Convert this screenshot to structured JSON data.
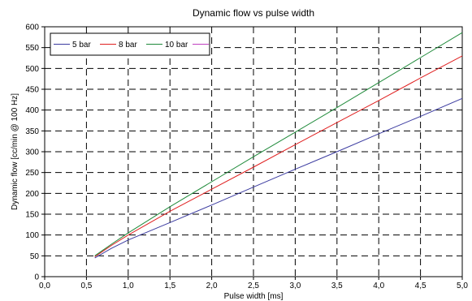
{
  "chart_data": {
    "type": "line",
    "title": "Dynamic flow vs pulse width",
    "xlabel": "Pulse width [ms]",
    "ylabel": "Dynamic flow [cc/min @ 100 Hz]",
    "xlim": [
      0,
      5
    ],
    "ylim": [
      0,
      600
    ],
    "x_ticks": [
      "0,0",
      "0,5",
      "1,0",
      "1,5",
      "2,0",
      "2,5",
      "3,0",
      "3,5",
      "4,0",
      "4,5",
      "5,0"
    ],
    "x_tick_values": [
      0,
      0.5,
      1,
      1.5,
      2,
      2.5,
      3,
      3.5,
      4,
      4.5,
      5
    ],
    "y_ticks": [
      "0",
      "50",
      "100",
      "150",
      "200",
      "250",
      "300",
      "350",
      "400",
      "450",
      "500",
      "550",
      "600"
    ],
    "y_tick_values": [
      0,
      50,
      100,
      150,
      200,
      250,
      300,
      350,
      400,
      450,
      500,
      550,
      600
    ],
    "grid": "dashed",
    "legend_position": "top-left",
    "series": [
      {
        "name": "5 bar",
        "color": "#3b3ba0",
        "x": [
          0.6,
          0.8,
          1.0,
          1.5,
          2.0,
          2.5,
          3.0,
          3.5,
          4.0,
          4.5,
          5.0
        ],
        "y": [
          45,
          68,
          88,
          130,
          172,
          215,
          258,
          300,
          343,
          385,
          428
        ]
      },
      {
        "name": "8 bar",
        "color": "#e02020",
        "x": [
          0.6,
          0.8,
          1.0,
          1.5,
          2.0,
          2.5,
          3.0,
          3.5,
          4.0,
          4.5,
          5.0
        ],
        "y": [
          48,
          75,
          100,
          157,
          210,
          263,
          317,
          370,
          423,
          477,
          530
        ]
      },
      {
        "name": "10 bar",
        "color": "#1f8a3a",
        "x": [
          0.6,
          0.8,
          1.0,
          1.5,
          2.0,
          2.5,
          3.0,
          3.5,
          4.0,
          4.5,
          5.0
        ],
        "y": [
          50,
          78,
          105,
          168,
          228,
          288,
          347,
          406,
          466,
          526,
          586
        ]
      },
      {
        "name": "",
        "color": "#c040c0",
        "x": [],
        "y": []
      }
    ]
  }
}
